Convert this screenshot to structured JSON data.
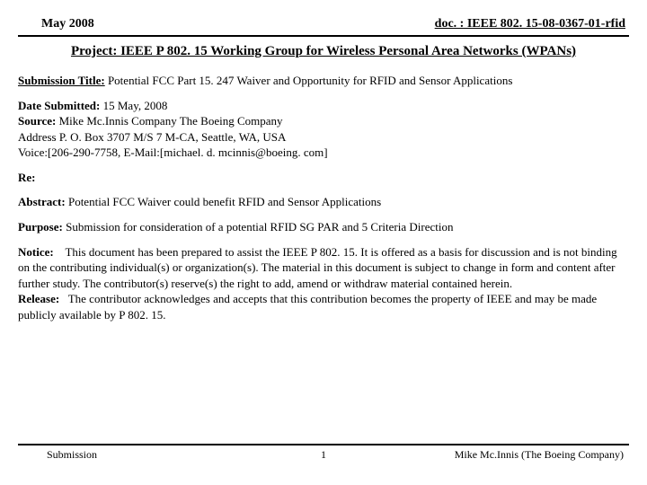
{
  "header": {
    "date": "May 2008",
    "docref": "doc. : IEEE 802. 15-08-0367-01-rfid"
  },
  "project_line": "Project: IEEE P 802. 15 Working Group for Wireless Personal Area Networks (WPANs)",
  "submission_title": {
    "label": "Submission Title:",
    "value": "Potential FCC Part 15. 247 Waiver and Opportunity for RFID and Sensor Applications"
  },
  "meta": {
    "date_submitted_label": "Date Submitted:",
    "date_submitted_value": "15 May, 2008",
    "source_label": "Source:",
    "source_value": "Mike Mc.Innis Company The Boeing Company",
    "address_line": "Address P. O. Box 3707 M/S 7 M-CA, Seattle, WA, USA",
    "voice_line": "Voice:[206-290-7758, E-Mail:[michael. d. mcinnis@boeing. com]"
  },
  "re": {
    "label": "Re:"
  },
  "abstract": {
    "label": "Abstract:",
    "value": "Potential FCC Waiver could benefit RFID and Sensor Applications"
  },
  "purpose": {
    "label": "Purpose:",
    "value": "Submission for consideration of a potential RFID SG PAR and 5 Criteria Direction"
  },
  "notice": {
    "label": "Notice:",
    "value": "This document has been prepared to assist the IEEE P 802. 15. It is offered as a basis for discussion and is not binding on the contributing individual(s) or organization(s). The material in this document is subject to change in form and content after further study. The contributor(s) reserve(s) the right to add, amend or withdraw material contained herein."
  },
  "release": {
    "label": "Release:",
    "value": "The contributor acknowledges and accepts that this contribution becomes the property of IEEE and may be made publicly available by P 802. 15."
  },
  "footer": {
    "left": "Submission",
    "mid": "1",
    "right": "Mike Mc.Innis (The Boeing Company)"
  }
}
